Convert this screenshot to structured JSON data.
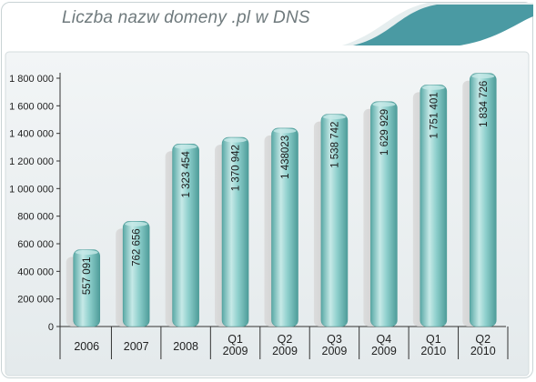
{
  "chart_data": {
    "type": "bar",
    "title": "Liczba nazw domeny .pl w DNS",
    "categories": [
      [
        "2006"
      ],
      [
        "2007"
      ],
      [
        "2008"
      ],
      [
        "Q1",
        "2009"
      ],
      [
        "Q2",
        "2009"
      ],
      [
        "Q3",
        "2009"
      ],
      [
        "Q4",
        "2009"
      ],
      [
        "Q1",
        "2010"
      ],
      [
        "Q2",
        "2010"
      ]
    ],
    "values": [
      557091,
      762656,
      1323454,
      1370942,
      1438023,
      1538742,
      1629929,
      1751401,
      1834726
    ],
    "value_labels": [
      "557 091",
      "762 656",
      "1 323 454",
      "1 370 942",
      "1 438023",
      "1 538 742",
      "1 629 929",
      "1 751 401",
      "1 834 726"
    ],
    "ylim": [
      0,
      1800000
    ],
    "yticks": [
      0,
      200000,
      400000,
      600000,
      800000,
      1000000,
      1200000,
      1400000,
      1600000,
      1800000
    ],
    "ytick_labels": [
      "0",
      "200 000",
      "400 000",
      "600 000",
      "800 000",
      "1 000 000",
      "1 200 000",
      "1 400 000",
      "1 600 000",
      "1 800 000"
    ],
    "xlabel": "",
    "ylabel": "",
    "grid": false,
    "legend": "none",
    "bar_color": "#7fc4c1",
    "bar_dark": "#4e9c99",
    "bar_light": "#c6e9e7",
    "shadow_color": "#cfcfcf",
    "panel_color": "#eaeef0",
    "accent_color": "#4a9aa3"
  }
}
